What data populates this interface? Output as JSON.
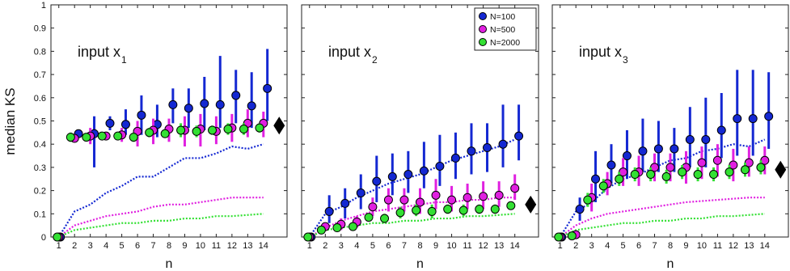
{
  "figure": {
    "ylabel": "median KS",
    "colors": {
      "N100": "#1428d2",
      "N500": "#e020e0",
      "N2000": "#33e033",
      "dot_outline": "#000000",
      "reference_marker": "#000000"
    },
    "legend": {
      "placement": "top-right of middle panel",
      "entries": [
        "N=100",
        "N=500",
        "N=2000"
      ]
    }
  },
  "chart_data": [
    {
      "type": "scatter",
      "title": "input x",
      "title_subscript": "1",
      "xlabel": "n",
      "ylabel": "median KS",
      "xlim": [
        0.5,
        15.5
      ],
      "ylim": [
        0,
        1
      ],
      "x_ticks": [
        "1",
        "2",
        "3",
        "4",
        "5",
        "6",
        "7",
        "8",
        "9",
        "10",
        "11",
        "12",
        "13",
        "14"
      ],
      "y_ticks": [
        "0",
        "0.1",
        "0.2",
        "0.3",
        "0.4",
        "0.5",
        "0.6",
        "0.7",
        "0.8",
        "0.9",
        "1"
      ],
      "x": [
        1,
        2,
        3,
        4,
        5,
        6,
        7,
        8,
        9,
        10,
        11,
        12,
        13,
        14
      ],
      "series": [
        {
          "name": "N=100",
          "values": [
            0,
            0.445,
            0.445,
            0.49,
            0.485,
            0.525,
            0.485,
            0.57,
            0.555,
            0.575,
            0.57,
            0.61,
            0.565,
            0.64
          ],
          "err_low": [
            0,
            0.43,
            0.3,
            0.46,
            0.44,
            0.44,
            0.43,
            0.49,
            0.47,
            0.46,
            0.47,
            0.49,
            0.47,
            0.5
          ],
          "err_high": [
            0,
            0.46,
            0.52,
            0.52,
            0.55,
            0.61,
            0.57,
            0.64,
            0.64,
            0.69,
            0.78,
            0.72,
            0.71,
            0.81
          ],
          "reference_line": [
            0,
            0.11,
            0.14,
            0.19,
            0.22,
            0.26,
            0.26,
            0.3,
            0.34,
            0.34,
            0.36,
            0.39,
            0.38,
            0.4
          ]
        },
        {
          "name": "N=500",
          "values": [
            0,
            0.425,
            0.435,
            0.435,
            0.44,
            0.455,
            0.46,
            0.465,
            0.46,
            0.465,
            0.455,
            0.47,
            0.49,
            0.49
          ],
          "err_low": [
            0,
            0.41,
            0.4,
            0.42,
            0.41,
            0.39,
            0.4,
            0.41,
            0.39,
            0.39,
            0.4,
            0.41,
            0.43,
            0.43
          ],
          "err_high": [
            0,
            0.44,
            0.47,
            0.45,
            0.47,
            0.5,
            0.51,
            0.51,
            0.52,
            0.53,
            0.52,
            0.53,
            0.55,
            0.54
          ],
          "reference_line": [
            0,
            0.05,
            0.07,
            0.09,
            0.1,
            0.11,
            0.13,
            0.14,
            0.14,
            0.15,
            0.16,
            0.17,
            0.17,
            0.17
          ]
        },
        {
          "name": "N=2000",
          "values": [
            0,
            0.43,
            0.43,
            0.435,
            0.435,
            0.43,
            0.45,
            0.445,
            0.46,
            0.455,
            0.46,
            0.465,
            0.465,
            0.47
          ],
          "err_low": [
            0,
            0.41,
            0.42,
            0.42,
            0.42,
            0.41,
            0.43,
            0.43,
            0.43,
            0.43,
            0.44,
            0.44,
            0.44,
            0.45
          ],
          "err_high": [
            0,
            0.45,
            0.44,
            0.45,
            0.45,
            0.45,
            0.47,
            0.46,
            0.49,
            0.48,
            0.48,
            0.49,
            0.49,
            0.49
          ],
          "reference_line": [
            0,
            0.03,
            0.04,
            0.05,
            0.06,
            0.06,
            0.07,
            0.07,
            0.08,
            0.08,
            0.09,
            0.09,
            0.095,
            0.1
          ]
        }
      ],
      "reference_marker": {
        "x": 15,
        "y": 0.48,
        "shape": "diamond"
      }
    },
    {
      "type": "scatter",
      "title": "input x",
      "title_subscript": "2",
      "xlabel": "n",
      "xlim": [
        0.5,
        15.5
      ],
      "ylim": [
        0,
        1
      ],
      "x_ticks": [
        "1",
        "2",
        "3",
        "4",
        "5",
        "6",
        "7",
        "8",
        "9",
        "10",
        "11",
        "12",
        "13",
        "14"
      ],
      "x": [
        1,
        2,
        3,
        4,
        5,
        6,
        7,
        8,
        9,
        10,
        11,
        12,
        13,
        14
      ],
      "series": [
        {
          "name": "N=100",
          "values": [
            0,
            0.11,
            0.145,
            0.19,
            0.24,
            0.26,
            0.27,
            0.285,
            0.305,
            0.34,
            0.37,
            0.385,
            0.4,
            0.435
          ],
          "err_low": [
            0,
            0.06,
            0.08,
            0.12,
            0.15,
            0.18,
            0.19,
            0.21,
            0.22,
            0.25,
            0.27,
            0.28,
            0.3,
            0.33
          ],
          "err_high": [
            0,
            0.18,
            0.21,
            0.27,
            0.35,
            0.36,
            0.37,
            0.41,
            0.44,
            0.45,
            0.49,
            0.49,
            0.57,
            0.57
          ],
          "reference_line": [
            0,
            0.1,
            0.13,
            0.17,
            0.2,
            0.23,
            0.25,
            0.27,
            0.3,
            0.33,
            0.35,
            0.37,
            0.39,
            0.42
          ]
        },
        {
          "name": "N=500",
          "values": [
            0,
            0.045,
            0.055,
            0.065,
            0.13,
            0.16,
            0.16,
            0.15,
            0.18,
            0.16,
            0.17,
            0.175,
            0.18,
            0.21
          ],
          "err_low": [
            0,
            0.03,
            0.03,
            0.04,
            0.09,
            0.11,
            0.11,
            0.1,
            0.12,
            0.11,
            0.12,
            0.12,
            0.13,
            0.16
          ],
          "err_high": [
            0,
            0.06,
            0.08,
            0.09,
            0.17,
            0.21,
            0.21,
            0.21,
            0.25,
            0.22,
            0.23,
            0.24,
            0.24,
            0.27
          ],
          "reference_line": [
            0,
            0.04,
            0.07,
            0.09,
            0.11,
            0.12,
            0.13,
            0.14,
            0.15,
            0.15,
            0.16,
            0.16,
            0.17,
            0.17
          ]
        },
        {
          "name": "N=2000",
          "values": [
            0,
            0.03,
            0.04,
            0.045,
            0.085,
            0.08,
            0.105,
            0.115,
            0.11,
            0.12,
            0.115,
            0.12,
            0.12,
            0.135
          ],
          "err_low": [
            0,
            0.02,
            0.03,
            0.035,
            0.07,
            0.06,
            0.08,
            0.09,
            0.08,
            0.1,
            0.09,
            0.1,
            0.1,
            0.12
          ],
          "err_high": [
            0,
            0.04,
            0.05,
            0.055,
            0.1,
            0.1,
            0.13,
            0.14,
            0.14,
            0.14,
            0.14,
            0.14,
            0.14,
            0.15
          ],
          "reference_line": [
            0,
            0.03,
            0.04,
            0.05,
            0.06,
            0.06,
            0.07,
            0.07,
            0.08,
            0.08,
            0.09,
            0.09,
            0.095,
            0.1
          ]
        }
      ],
      "reference_marker": {
        "x": 15,
        "y": 0.14,
        "shape": "diamond"
      }
    },
    {
      "type": "scatter",
      "title": "input x",
      "title_subscript": "3",
      "xlabel": "n",
      "xlim": [
        0.5,
        15.5
      ],
      "ylim": [
        0,
        1
      ],
      "x_ticks": [
        "1",
        "2",
        "3",
        "4",
        "5",
        "6",
        "7",
        "8",
        "9",
        "10",
        "11",
        "12",
        "13",
        "14"
      ],
      "x": [
        1,
        2,
        3,
        4,
        5,
        6,
        7,
        8,
        9,
        10,
        11,
        12,
        13,
        14
      ],
      "series": [
        {
          "name": "N=100",
          "values": [
            0,
            0.12,
            0.25,
            0.31,
            0.35,
            0.37,
            0.38,
            0.38,
            0.42,
            0.42,
            0.46,
            0.51,
            0.51,
            0.52
          ],
          "err_low": [
            0,
            0.07,
            0.15,
            0.23,
            0.25,
            0.28,
            0.28,
            0.28,
            0.3,
            0.3,
            0.34,
            0.35,
            0.35,
            0.38
          ],
          "err_high": [
            0,
            0.17,
            0.37,
            0.4,
            0.46,
            0.51,
            0.5,
            0.47,
            0.56,
            0.6,
            0.62,
            0.72,
            0.72,
            0.71
          ],
          "reference_line": [
            0,
            0.11,
            0.15,
            0.21,
            0.25,
            0.27,
            0.3,
            0.33,
            0.34,
            0.37,
            0.38,
            0.4,
            0.39,
            0.42
          ]
        },
        {
          "name": "N=500",
          "values": [
            0,
            0.01,
            0.17,
            0.23,
            0.28,
            0.28,
            0.3,
            0.3,
            0.3,
            0.32,
            0.33,
            0.31,
            0.32,
            0.33
          ],
          "err_low": [
            0,
            0.005,
            0.11,
            0.18,
            0.22,
            0.22,
            0.24,
            0.24,
            0.23,
            0.25,
            0.26,
            0.24,
            0.26,
            0.27
          ],
          "err_high": [
            0,
            0.02,
            0.23,
            0.28,
            0.34,
            0.35,
            0.36,
            0.36,
            0.37,
            0.39,
            0.4,
            0.38,
            0.39,
            0.39
          ],
          "reference_line": [
            0,
            0.05,
            0.08,
            0.1,
            0.11,
            0.12,
            0.13,
            0.14,
            0.15,
            0.155,
            0.16,
            0.165,
            0.17,
            0.17
          ]
        },
        {
          "name": "N=2000",
          "values": [
            0,
            0.005,
            0.16,
            0.22,
            0.25,
            0.27,
            0.27,
            0.26,
            0.28,
            0.27,
            0.27,
            0.28,
            0.29,
            0.3
          ],
          "err_low": [
            0,
            0.0,
            0.13,
            0.19,
            0.22,
            0.24,
            0.24,
            0.23,
            0.25,
            0.24,
            0.24,
            0.25,
            0.26,
            0.27
          ],
          "err_high": [
            0,
            0.01,
            0.19,
            0.25,
            0.28,
            0.3,
            0.3,
            0.29,
            0.31,
            0.3,
            0.3,
            0.31,
            0.32,
            0.33
          ],
          "reference_line": [
            0,
            0.03,
            0.04,
            0.05,
            0.06,
            0.06,
            0.07,
            0.07,
            0.08,
            0.08,
            0.09,
            0.09,
            0.095,
            0.1
          ]
        }
      ],
      "reference_marker": {
        "x": 15,
        "y": 0.29,
        "shape": "diamond"
      }
    }
  ]
}
